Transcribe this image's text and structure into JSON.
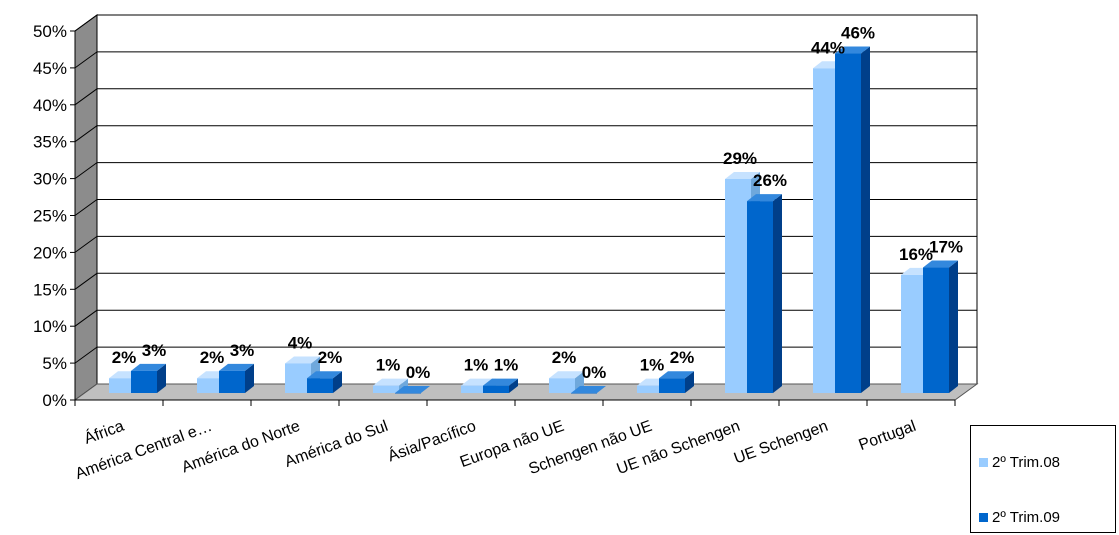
{
  "chart_data": {
    "type": "bar",
    "title": "",
    "xlabel": "",
    "ylabel": "",
    "ylim": [
      0,
      50
    ],
    "yticks": [
      "0%",
      "5%",
      "10%",
      "15%",
      "20%",
      "25%",
      "30%",
      "35%",
      "40%",
      "45%",
      "50%"
    ],
    "categories": [
      "África",
      "América Central e…",
      "América do Norte",
      "América do Sul",
      "Ásia/Pacífico",
      "Europa não UE",
      "Schengen não UE",
      "UE não Schengen",
      "UE Schengen",
      "Portugal"
    ],
    "series": [
      {
        "name": "2º Trim.08",
        "values": [
          2,
          2,
          4,
          1,
          1,
          2,
          1,
          29,
          44,
          16
        ],
        "labels": [
          "2%",
          "2%",
          "4%",
          "1%",
          "1%",
          "2%",
          "1%",
          "29%",
          "44%",
          "16%"
        ]
      },
      {
        "name": "2º Trim.09",
        "values": [
          3,
          3,
          2,
          0,
          1,
          0,
          2,
          26,
          46,
          17
        ],
        "labels": [
          "3%",
          "3%",
          "2%",
          "0%",
          "1%",
          "0%",
          "2%",
          "26%",
          "46%",
          "17%"
        ]
      }
    ],
    "grid": true,
    "legend": "bottom-right"
  },
  "colors": {
    "series1": "#99ccff",
    "series1_side": "#6fa8dc",
    "series1_top": "#c6e2ff",
    "series2": "#0066cc",
    "series2_side": "#003f8a",
    "series2_top": "#3388dd",
    "wall": "#ffffff",
    "side_wall": "#8c8c8c",
    "floor": "#bfbfbf"
  }
}
